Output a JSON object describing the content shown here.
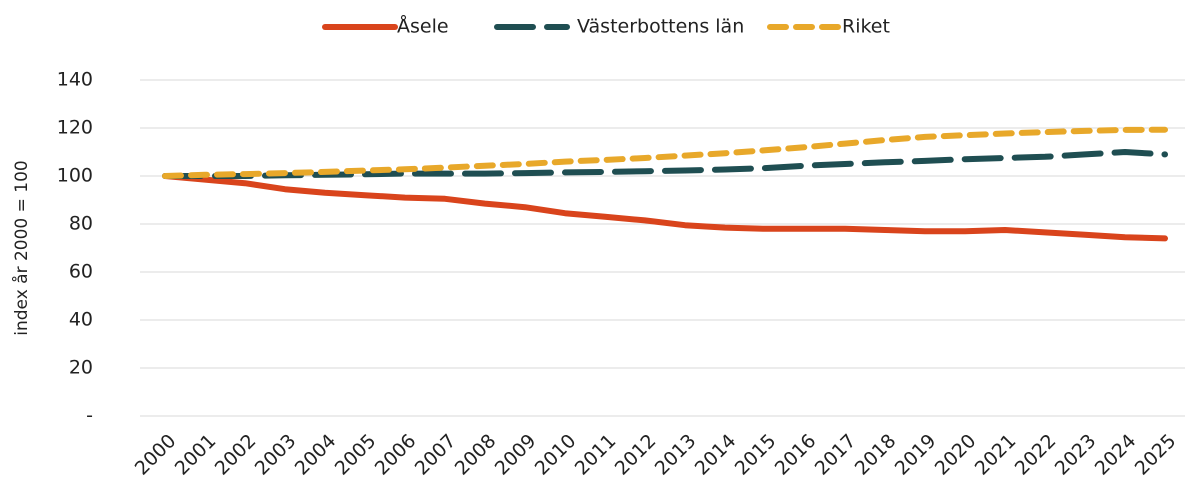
{
  "chart_data": {
    "type": "line",
    "ylabel": "index år 2000 = 100",
    "categories": [
      "2000",
      "2001",
      "2002",
      "2003",
      "2004",
      "2005",
      "2006",
      "2007",
      "2008",
      "2009",
      "2010",
      "2011",
      "2012",
      "2013",
      "2014",
      "2015",
      "2016",
      "2017",
      "2018",
      "2019",
      "2020",
      "2021",
      "2022",
      "2023",
      "2024",
      "2025"
    ],
    "series": [
      {
        "name": "Åsele",
        "color": "#d9441c",
        "dash": "solid",
        "values": [
          100,
          98.5,
          97,
          94.5,
          93,
          92,
          91,
          90.5,
          88.5,
          87,
          84.5,
          83,
          81.5,
          79.5,
          78.5,
          78,
          78,
          78,
          77.5,
          77,
          77,
          77.5,
          76.5,
          75.5,
          74.5,
          74
        ]
      },
      {
        "name": "Västerbottens län",
        "color": "#1f4e52",
        "dash": "long",
        "values": [
          100,
          100,
          100,
          100.3,
          100.5,
          100.7,
          101,
          101,
          101,
          101.2,
          101.5,
          101.7,
          102,
          102.3,
          102.7,
          103.3,
          104.3,
          105,
          105.7,
          106.3,
          107,
          107.5,
          108,
          109,
          110,
          109
        ]
      },
      {
        "name": "Riket",
        "color": "#e8a82a",
        "dash": "short",
        "values": [
          100,
          100.5,
          100.8,
          101.2,
          101.7,
          102.3,
          102.8,
          103.5,
          104.3,
          105,
          106,
          106.7,
          107.5,
          108.5,
          109.5,
          110.7,
          112,
          113.5,
          115,
          116.3,
          117,
          117.7,
          118.3,
          118.8,
          119.2,
          119.3
        ]
      }
    ],
    "ylim": [
      0,
      140
    ],
    "yticks": [
      {
        "value": 0,
        "label": "-"
      },
      20,
      40,
      60,
      80,
      100,
      120,
      140
    ],
    "grid": true,
    "legend": "top"
  }
}
